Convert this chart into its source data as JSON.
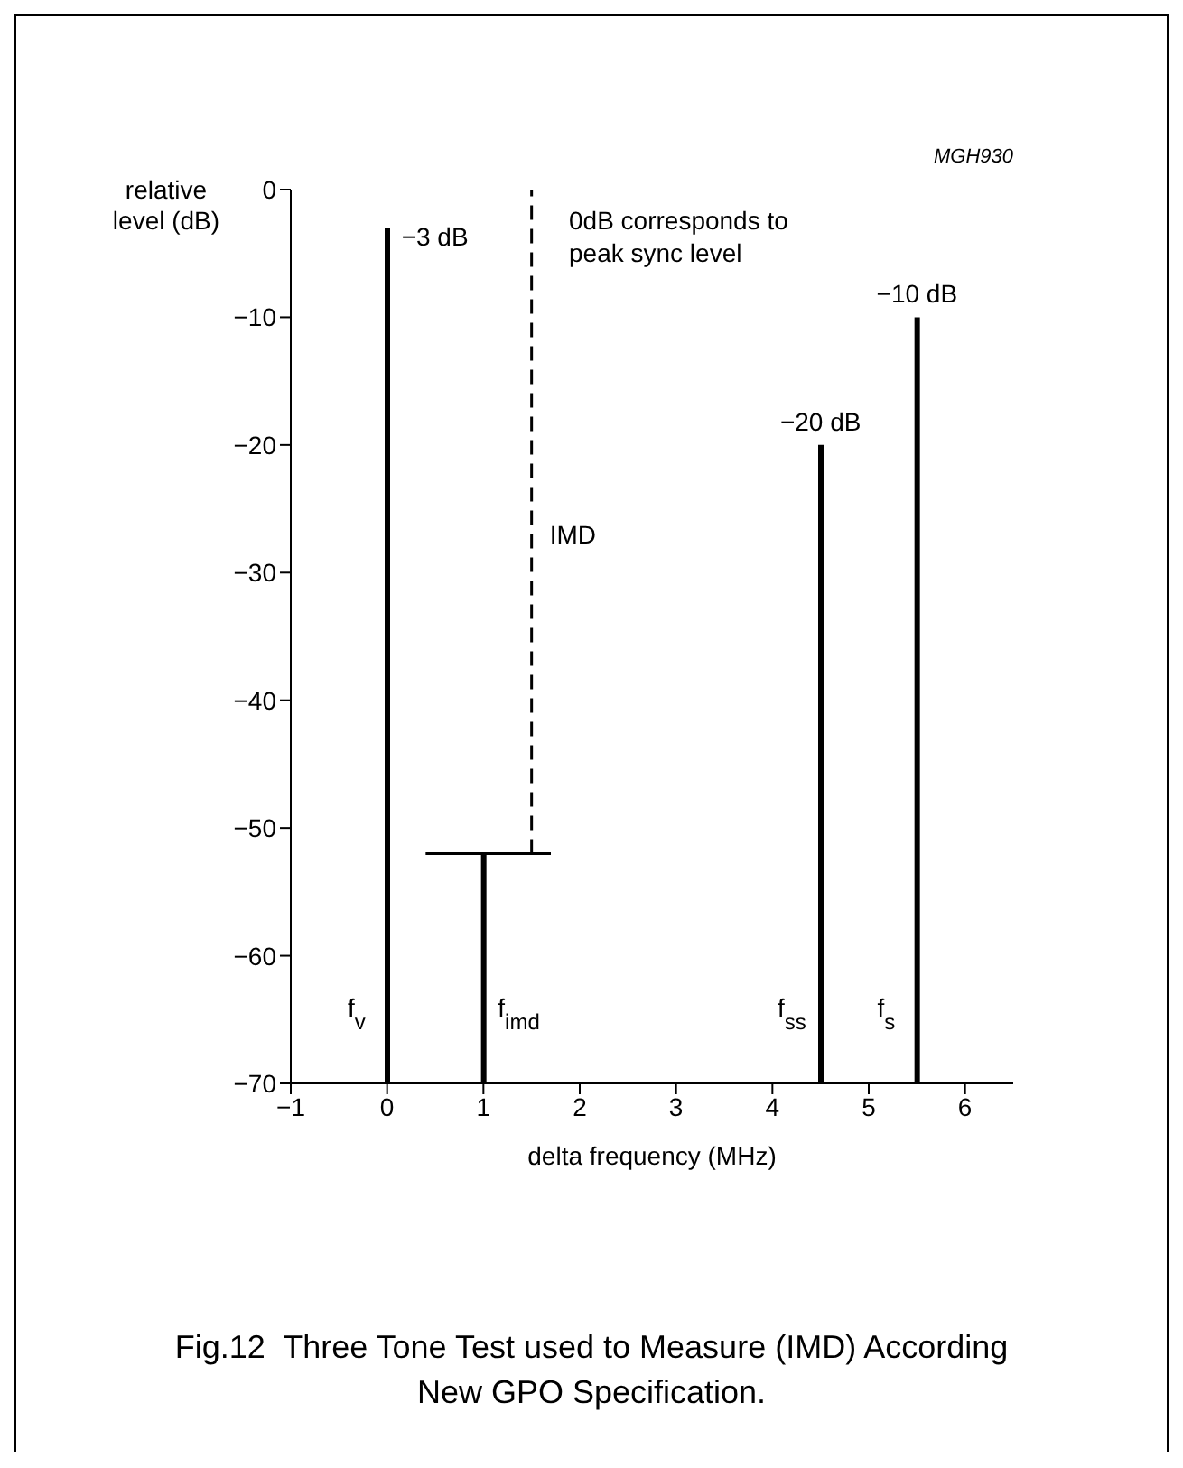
{
  "chart_data": {
    "type": "bar",
    "title": "Fig.12  Three Tone Test used to Measure (IMD) According New GPO Specification.",
    "xlabel": "delta frequency (MHz)",
    "ylabel": "relative level (dB)",
    "xlim": [
      -1,
      6.5
    ],
    "xticks": [
      {
        "value": -1,
        "label": "−1"
      },
      0,
      1,
      2,
      3,
      4,
      5,
      6
    ],
    "ylim": [
      -70,
      0
    ],
    "yticks": [
      0,
      {
        "value": -10,
        "label": "−10"
      },
      {
        "value": -20,
        "label": "−20"
      },
      {
        "value": -30,
        "label": "−30"
      },
      {
        "value": -40,
        "label": "−40"
      },
      {
        "value": -50,
        "label": "−50"
      },
      {
        "value": -60,
        "label": "−60"
      },
      {
        "value": -70,
        "label": "−70"
      }
    ],
    "series": [
      {
        "color": "#000000",
        "x": [
          0,
          1,
          4.5,
          5.5
        ],
        "base": [
          -70,
          -70,
          -70,
          -70
        ],
        "values": [
          67,
          18,
          50,
          60
        ]
      },
      {
        "type": "line",
        "color": "#000000",
        "line_style": "dashed",
        "x": [
          1.5,
          1.5
        ],
        "values": [
          -52,
          0
        ]
      },
      {
        "type": "line",
        "color": "#000000",
        "line_style": "solid",
        "x": [
          0.4,
          1.7
        ],
        "values": [
          -52,
          -52
        ]
      }
    ],
    "annotations": [
      "MGH930",
      "0dB corresponds to peak sync level",
      {
        "text": "−3 dB",
        "x": 0,
        "y": -3
      },
      {
        "text": "−20 dB",
        "x": 4.5,
        "y": -20
      },
      {
        "text": "−10 dB",
        "x": 5.5,
        "y": -10
      },
      {
        "text": "IMD",
        "x": 1.5,
        "y": -27
      },
      {
        "text": "f$_{v}$",
        "x": 0,
        "y": -70
      },
      {
        "text": "f$_{imd}$",
        "x": 1,
        "y": -70
      },
      {
        "text": "f$_{ss}$",
        "x": 4.5,
        "y": -70
      },
      {
        "text": "f$_{s}$",
        "x": 5.5,
        "y": -70
      }
    ]
  }
}
